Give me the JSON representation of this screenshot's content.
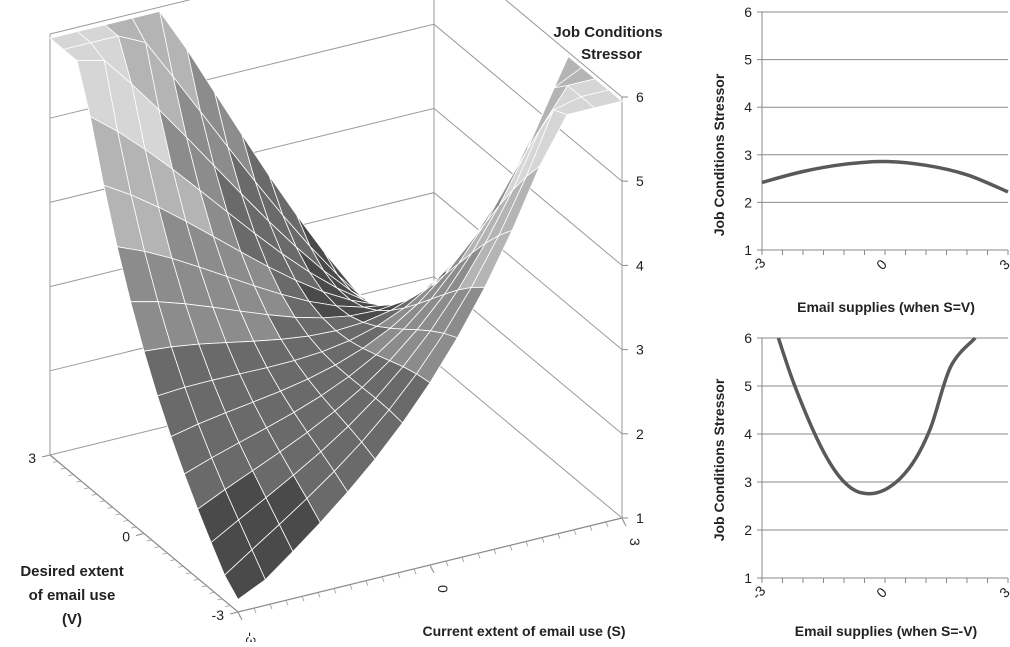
{
  "chart_data": [
    {
      "type": "surface",
      "zlabel": "Job Conditions Stressor",
      "xlabel": "Current extent of email use (S)",
      "ylabel": "Desired extent of email use (V)",
      "x_ticks": [
        "-3",
        "0",
        "3"
      ],
      "y_ticks": [
        "3",
        "0",
        "-3"
      ],
      "z_ticks": [
        "1",
        "2",
        "3",
        "4",
        "5",
        "6"
      ],
      "xlim": [
        -3,
        3
      ],
      "ylim": [
        -3,
        3
      ],
      "zlim": [
        1,
        6
      ],
      "palette": [
        "#4a4a4a",
        "#6a6a6a",
        "#8c8c8c",
        "#b4b4b4",
        "#d6d6d6"
      ],
      "grid": true
    },
    {
      "type": "line",
      "xlabel": "Email supplies (when S=V)",
      "ylabel": "Job Conditions Stressor",
      "x_ticks": [
        "-3",
        "0",
        "3"
      ],
      "y_ticks": [
        "1",
        "2",
        "3",
        "4",
        "5",
        "6"
      ],
      "ylim": [
        1,
        6
      ],
      "x": [
        -3,
        -2,
        -1,
        0,
        1,
        2,
        3
      ],
      "values": [
        2.42,
        2.65,
        2.8,
        2.86,
        2.78,
        2.58,
        2.22
      ],
      "color": "#595959"
    },
    {
      "type": "line",
      "xlabel": "Email supplies (when S=-V)",
      "ylabel": "Job Conditions Stressor",
      "x_ticks": [
        "-3",
        "0",
        "3"
      ],
      "y_ticks": [
        "1",
        "2",
        "3",
        "4",
        "5",
        "6"
      ],
      "ylim": [
        1,
        6
      ],
      "x": [
        -2.6,
        -2.2,
        -1.6,
        -1.1,
        -0.6,
        0,
        0.6,
        1.1,
        1.6,
        2.2
      ],
      "values": [
        6.0,
        5.0,
        3.8,
        3.1,
        2.78,
        2.84,
        3.3,
        4.1,
        5.4,
        6.0
      ],
      "color": "#595959"
    }
  ]
}
